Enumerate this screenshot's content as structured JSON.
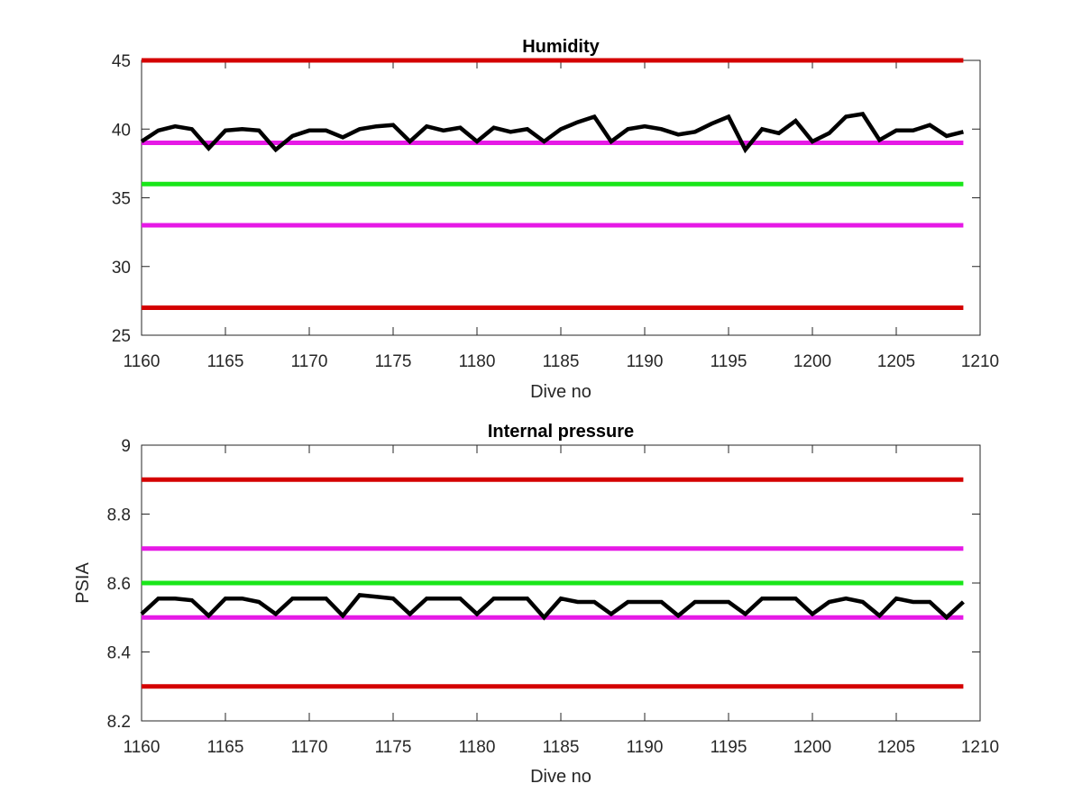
{
  "chart_data": [
    {
      "type": "line",
      "title": "Humidity",
      "xlabel": "Dive no",
      "ylabel": "",
      "xlim": [
        1160,
        1210
      ],
      "ylim": [
        25,
        45
      ],
      "xticks": [
        1160,
        1165,
        1170,
        1175,
        1180,
        1185,
        1190,
        1195,
        1200,
        1205,
        1210
      ],
      "yticks": [
        25,
        30,
        35,
        40,
        45
      ],
      "grid": false,
      "reference_lines": [
        {
          "y": 45,
          "color": "#d40000"
        },
        {
          "y": 39,
          "color": "#e619e6"
        },
        {
          "y": 36,
          "color": "#19e619"
        },
        {
          "y": 33,
          "color": "#e619e6"
        },
        {
          "y": 27,
          "color": "#d40000"
        }
      ],
      "series": [
        {
          "color": "#000000",
          "x": [
            1160,
            1161,
            1162,
            1163,
            1164,
            1165,
            1166,
            1167,
            1168,
            1169,
            1170,
            1171,
            1172,
            1173,
            1174,
            1175,
            1176,
            1177,
            1178,
            1179,
            1180,
            1181,
            1182,
            1183,
            1184,
            1185,
            1186,
            1187,
            1188,
            1189,
            1190,
            1191,
            1192,
            1193,
            1194,
            1195,
            1196,
            1197,
            1198,
            1199,
            1200,
            1201,
            1202,
            1203,
            1204,
            1205,
            1206,
            1207,
            1208,
            1209
          ],
          "y": [
            39.1,
            39.9,
            40.2,
            40.0,
            38.6,
            39.9,
            40.0,
            39.9,
            38.5,
            39.5,
            39.9,
            39.9,
            39.4,
            40.0,
            40.2,
            40.3,
            39.1,
            40.2,
            39.9,
            40.1,
            39.1,
            40.1,
            39.8,
            40.0,
            39.1,
            40.0,
            40.5,
            40.9,
            39.1,
            40.0,
            40.2,
            40.0,
            39.6,
            39.8,
            40.4,
            40.9,
            38.5,
            40.0,
            39.7,
            40.6,
            39.1,
            39.7,
            40.9,
            41.1,
            39.2,
            39.9,
            39.9,
            40.3,
            39.5,
            39.8
          ]
        }
      ]
    },
    {
      "type": "line",
      "title": "Internal pressure",
      "xlabel": "Dive no",
      "ylabel": "PSIA",
      "xlim": [
        1160,
        1210
      ],
      "ylim": [
        8.2,
        9
      ],
      "xticks": [
        1160,
        1165,
        1170,
        1175,
        1180,
        1185,
        1190,
        1195,
        1200,
        1205,
        1210
      ],
      "yticks": [
        "8.2",
        "8.4",
        "8.6",
        "8.8",
        "9"
      ],
      "grid": false,
      "reference_lines": [
        {
          "y": 8.9,
          "color": "#d40000"
        },
        {
          "y": 8.7,
          "color": "#e619e6"
        },
        {
          "y": 8.6,
          "color": "#19e619"
        },
        {
          "y": 8.5,
          "color": "#e619e6"
        },
        {
          "y": 8.3,
          "color": "#d40000"
        }
      ],
      "series": [
        {
          "color": "#000000",
          "x": [
            1160,
            1161,
            1162,
            1163,
            1164,
            1165,
            1166,
            1167,
            1168,
            1169,
            1170,
            1171,
            1172,
            1173,
            1174,
            1175,
            1176,
            1177,
            1178,
            1179,
            1180,
            1181,
            1182,
            1183,
            1184,
            1185,
            1186,
            1187,
            1188,
            1189,
            1190,
            1191,
            1192,
            1193,
            1194,
            1195,
            1196,
            1197,
            1198,
            1199,
            1200,
            1201,
            1202,
            1203,
            1204,
            1205,
            1206,
            1207,
            1208,
            1209
          ],
          "y": [
            8.51,
            8.555,
            8.555,
            8.55,
            8.505,
            8.555,
            8.555,
            8.545,
            8.51,
            8.555,
            8.555,
            8.555,
            8.505,
            8.565,
            8.56,
            8.555,
            8.51,
            8.555,
            8.555,
            8.555,
            8.51,
            8.555,
            8.555,
            8.555,
            8.5,
            8.555,
            8.545,
            8.545,
            8.51,
            8.545,
            8.545,
            8.545,
            8.505,
            8.545,
            8.545,
            8.545,
            8.51,
            8.555,
            8.555,
            8.555,
            8.51,
            8.545,
            8.555,
            8.545,
            8.505,
            8.555,
            8.545,
            8.545,
            8.5,
            8.545
          ]
        }
      ]
    }
  ]
}
